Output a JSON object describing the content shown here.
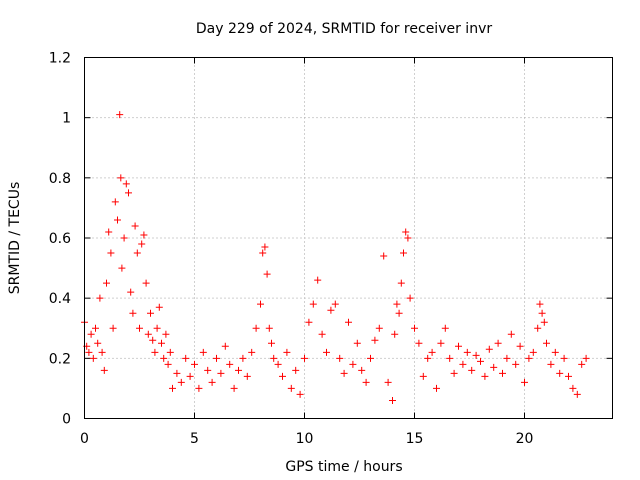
{
  "chart_data": {
    "type": "scatter",
    "title": "Day 229 of 2024, SRMTID for receiver invr",
    "xlabel": "GPS time / hours",
    "ylabel": "SRMTID / TECUs",
    "xlim": [
      0,
      24
    ],
    "ylim": [
      0,
      1.2
    ],
    "xticks": [
      0,
      5,
      10,
      15,
      20
    ],
    "xtick_labels": [
      "0",
      "5",
      "10",
      "15",
      "20"
    ],
    "yticks": [
      0,
      0.2,
      0.4,
      0.6,
      0.8,
      1,
      1.2
    ],
    "ytick_labels": [
      "0",
      "0.2",
      "0.4",
      "0.6",
      "0.8",
      "1",
      "1.2"
    ],
    "grid": true,
    "marker": "plus",
    "color": "#ff0000",
    "series": [
      {
        "name": "SRMTID",
        "x": [
          0.0,
          0.1,
          0.2,
          0.3,
          0.4,
          0.5,
          0.6,
          0.7,
          0.8,
          0.9,
          1.0,
          1.1,
          1.2,
          1.3,
          1.4,
          1.5,
          1.6,
          1.65,
          1.7,
          1.8,
          1.9,
          2.0,
          2.1,
          2.2,
          2.3,
          2.4,
          2.5,
          2.6,
          2.7,
          2.8,
          2.9,
          3.0,
          3.1,
          3.2,
          3.3,
          3.4,
          3.5,
          3.6,
          3.7,
          3.8,
          3.9,
          4.0,
          4.2,
          4.4,
          4.6,
          4.8,
          5.0,
          5.2,
          5.4,
          5.6,
          5.8,
          6.0,
          6.2,
          6.4,
          6.6,
          6.8,
          7.0,
          7.2,
          7.4,
          7.6,
          7.8,
          8.0,
          8.1,
          8.2,
          8.3,
          8.4,
          8.5,
          8.6,
          8.8,
          9.0,
          9.2,
          9.4,
          9.6,
          9.8,
          10.0,
          10.2,
          10.4,
          10.6,
          10.8,
          11.0,
          11.2,
          11.4,
          11.6,
          11.8,
          12.0,
          12.2,
          12.4,
          12.6,
          12.8,
          13.0,
          13.2,
          13.4,
          13.6,
          13.8,
          14.0,
          14.1,
          14.2,
          14.3,
          14.4,
          14.5,
          14.6,
          14.7,
          14.8,
          15.0,
          15.2,
          15.4,
          15.6,
          15.8,
          16.0,
          16.2,
          16.4,
          16.6,
          16.8,
          17.0,
          17.2,
          17.4,
          17.6,
          17.8,
          18.0,
          18.2,
          18.4,
          18.6,
          18.8,
          19.0,
          19.2,
          19.4,
          19.6,
          19.8,
          20.0,
          20.2,
          20.4,
          20.6,
          20.7,
          20.8,
          20.9,
          21.0,
          21.2,
          21.4,
          21.6,
          21.8,
          22.0,
          22.2,
          22.4,
          22.6,
          22.8
        ],
        "y": [
          0.32,
          0.24,
          0.22,
          0.28,
          0.2,
          0.3,
          0.25,
          0.4,
          0.22,
          0.16,
          0.45,
          0.62,
          0.55,
          0.3,
          0.72,
          0.66,
          1.01,
          0.8,
          0.5,
          0.6,
          0.78,
          0.75,
          0.42,
          0.35,
          0.64,
          0.55,
          0.3,
          0.58,
          0.61,
          0.45,
          0.28,
          0.35,
          0.26,
          0.22,
          0.3,
          0.37,
          0.25,
          0.2,
          0.28,
          0.18,
          0.22,
          0.1,
          0.15,
          0.12,
          0.2,
          0.14,
          0.18,
          0.1,
          0.22,
          0.16,
          0.12,
          0.2,
          0.15,
          0.24,
          0.18,
          0.1,
          0.16,
          0.2,
          0.14,
          0.22,
          0.3,
          0.38,
          0.55,
          0.57,
          0.48,
          0.3,
          0.25,
          0.2,
          0.18,
          0.14,
          0.22,
          0.1,
          0.16,
          0.08,
          0.2,
          0.32,
          0.38,
          0.46,
          0.28,
          0.22,
          0.36,
          0.38,
          0.2,
          0.15,
          0.32,
          0.18,
          0.25,
          0.16,
          0.12,
          0.2,
          0.26,
          0.3,
          0.54,
          0.12,
          0.06,
          0.28,
          0.38,
          0.35,
          0.45,
          0.55,
          0.62,
          0.6,
          0.4,
          0.3,
          0.25,
          0.14,
          0.2,
          0.22,
          0.1,
          0.25,
          0.3,
          0.2,
          0.15,
          0.24,
          0.18,
          0.22,
          0.16,
          0.21,
          0.19,
          0.14,
          0.23,
          0.17,
          0.25,
          0.15,
          0.2,
          0.28,
          0.18,
          0.24,
          0.12,
          0.2,
          0.22,
          0.3,
          0.38,
          0.35,
          0.32,
          0.25,
          0.18,
          0.22,
          0.15,
          0.2,
          0.14,
          0.1,
          0.08,
          0.18,
          0.2
        ]
      }
    ]
  }
}
